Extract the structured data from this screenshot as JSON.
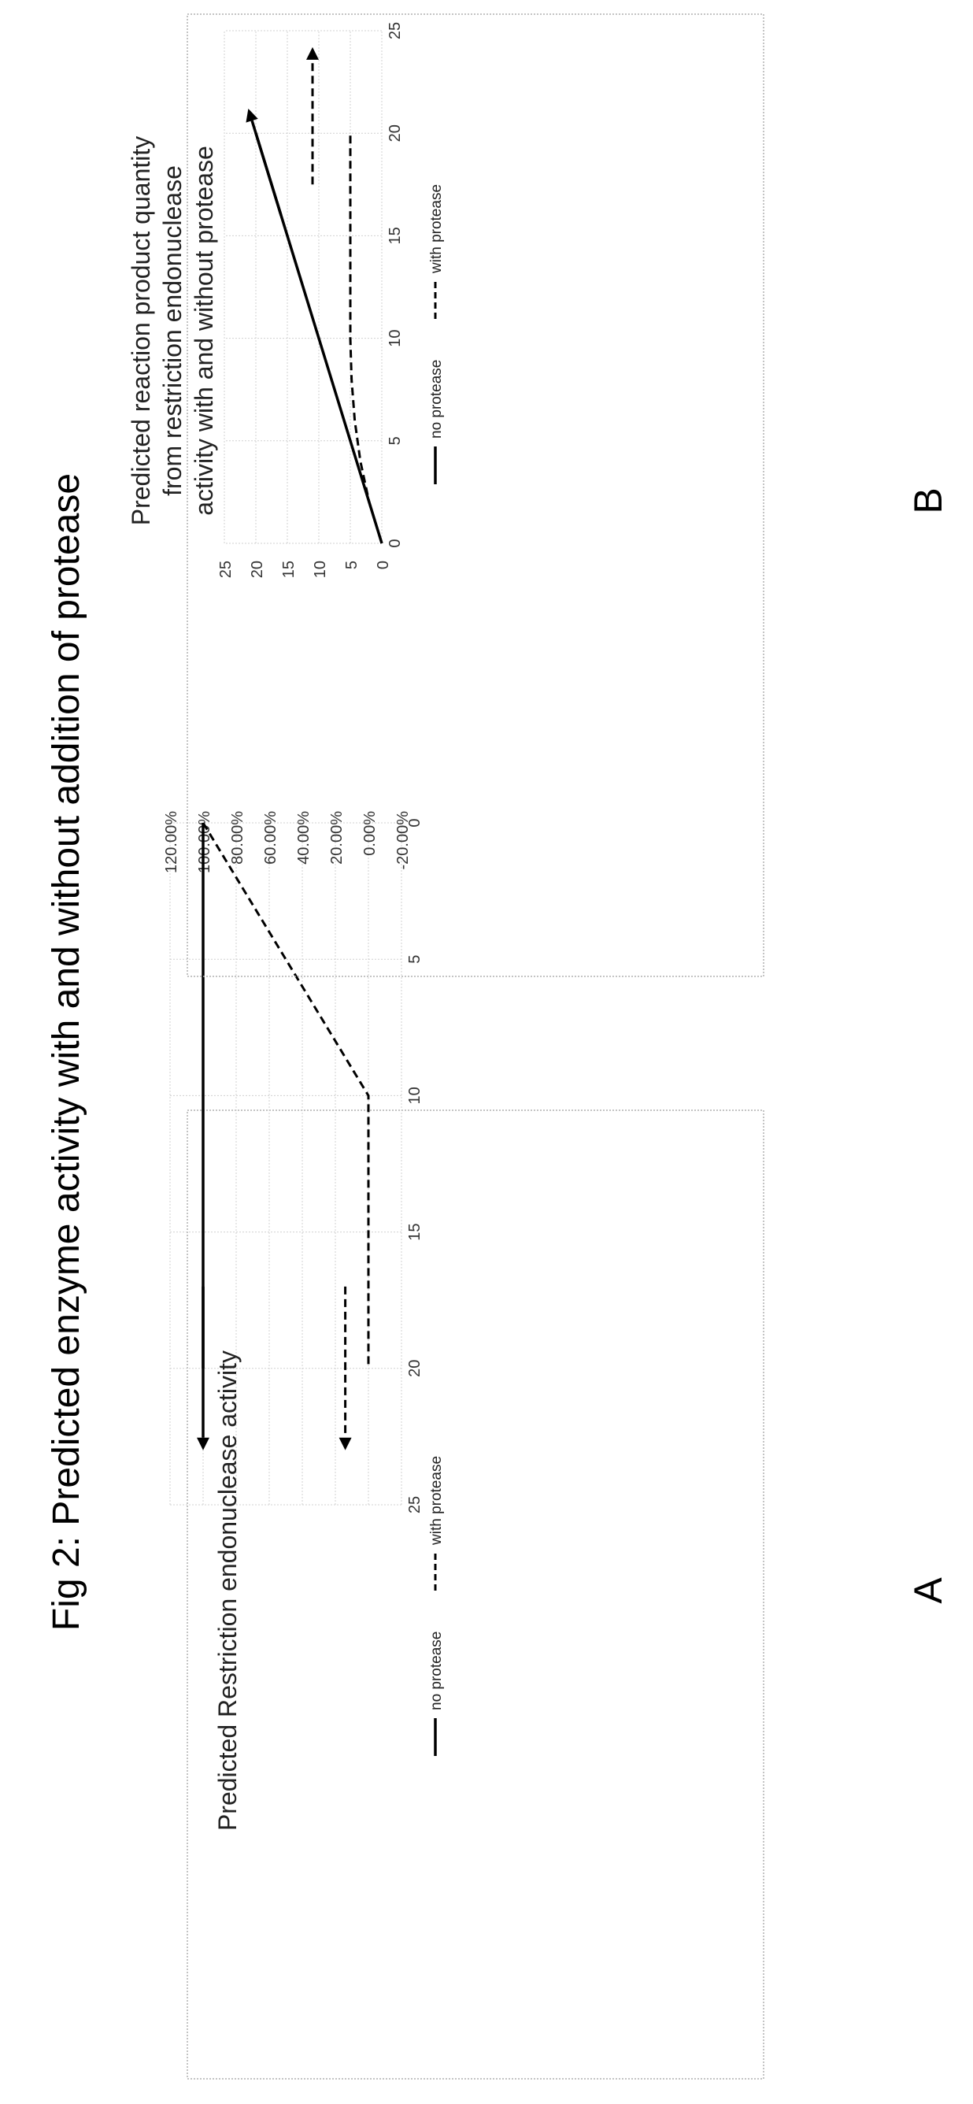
{
  "figure": {
    "title": "Fig 2: Predicted enzyme activity with and without addition of protease",
    "panel_labels": [
      "A",
      "B"
    ]
  },
  "chart_data": [
    {
      "panel": "A",
      "type": "line",
      "title": "Predicted Restriction endonuclease activity",
      "xlabel": "",
      "ylabel": "",
      "xlim": [
        0,
        25
      ],
      "ylim": [
        -0.2,
        1.2
      ],
      "x_ticks": [
        "0",
        "5",
        "10",
        "15",
        "20",
        "25"
      ],
      "y_ticks": [
        "120.00%",
        "100.00%",
        "80.00%",
        "60.00%",
        "40.00%",
        "20.00%",
        "0.00%",
        "-20.00%"
      ],
      "grid": true,
      "legend_position": "bottom",
      "series": [
        {
          "name": "no protease",
          "style": "solid",
          "x": [
            0,
            10,
            20
          ],
          "y": [
            1.0,
            1.0,
            1.0
          ]
        },
        {
          "name": "with protease",
          "style": "dashed",
          "x": [
            0,
            10,
            20
          ],
          "y": [
            1.0,
            0.0,
            0.0
          ]
        }
      ],
      "arrows": [
        {
          "style": "solid",
          "from": [
            17,
            1.0
          ],
          "to": [
            23,
            1.0
          ]
        },
        {
          "style": "dashed",
          "from": [
            17,
            0.14
          ],
          "to": [
            23,
            0.14
          ]
        }
      ]
    },
    {
      "panel": "B",
      "type": "line",
      "title": "Predicted reaction product quantity from restriction endonuclease activity with and without protease",
      "xlabel": "",
      "ylabel": "",
      "xlim": [
        0,
        25
      ],
      "ylim": [
        0,
        25
      ],
      "x_ticks": [
        "0",
        "5",
        "10",
        "15",
        "20",
        "25"
      ],
      "y_ticks": [
        "25",
        "20",
        "15",
        "10",
        "5",
        "0"
      ],
      "grid": true,
      "legend_position": "bottom",
      "series": [
        {
          "name": "no protease",
          "style": "solid",
          "x": [
            0,
            20
          ],
          "y": [
            0,
            20
          ]
        },
        {
          "name": "with protease",
          "style": "dashed",
          "x": [
            0,
            2,
            4,
            6,
            8,
            10,
            15,
            20
          ],
          "y": [
            0,
            2.0,
            3.4,
            4.3,
            4.8,
            5.0,
            5.0,
            5.0
          ]
        }
      ],
      "arrows": [
        {
          "style": "solid",
          "from": [
            16,
            16
          ],
          "to": [
            21.2,
            21.2
          ]
        },
        {
          "style": "dashed",
          "from": [
            17.5,
            11
          ],
          "to": [
            24.2,
            11
          ]
        }
      ]
    }
  ]
}
